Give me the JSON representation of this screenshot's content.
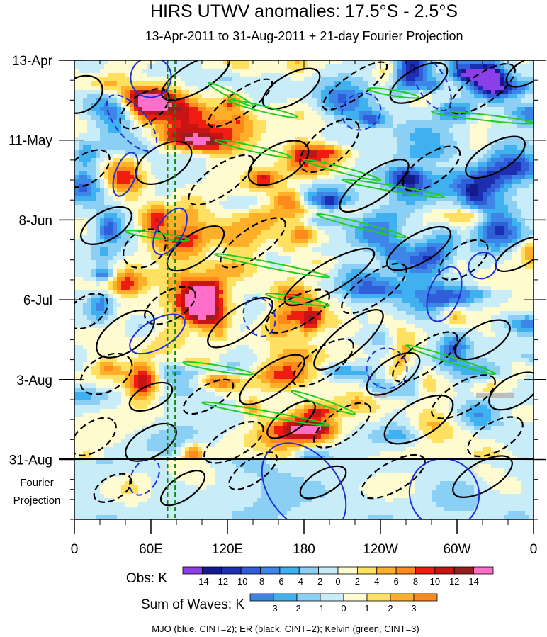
{
  "chart_data": {
    "type": "heatmap",
    "title": "HIRS UTWV anomalies: 17.5°S - 2.5°S",
    "subtitle": "13-Apr-2011 to 31-Aug-2011 + 21-day Fourier Projection",
    "x_axis": {
      "tick_labels": [
        "0",
        "60E",
        "120E",
        "180",
        "120W",
        "60W",
        "0"
      ],
      "tick_values_deg_east": [
        0,
        60,
        120,
        180,
        240,
        300,
        360
      ],
      "range": [
        0,
        360
      ]
    },
    "y_axis": {
      "tick_labels": [
        "13-Apr",
        "11-May",
        "8-Jun",
        "6-Jul",
        "3-Aug",
        "31-Aug"
      ],
      "tick_day_offsets": [
        0,
        28,
        56,
        84,
        112,
        140
      ],
      "range_days": [
        0,
        161
      ],
      "projection_label_line1": "Fourier",
      "projection_label_line2": "Projection",
      "projection_days": 21
    },
    "obs_colorbar": {
      "label": "Obs: K",
      "levels": [
        "-14",
        "-12",
        "-10",
        "-8",
        "-6",
        "-4",
        "-2",
        "0",
        "2",
        "4",
        "6",
        "8",
        "10",
        "12",
        "14"
      ],
      "colors": [
        "#8b3fe8",
        "#141a8c",
        "#1c2fb0",
        "#2f5fd8",
        "#3d86e8",
        "#3fb0f0",
        "#8ccff4",
        "#c8ecf8",
        "#fffbd0",
        "#ffe060",
        "#ffb028",
        "#ff8a1c",
        "#f01c10",
        "#c81414",
        "#962020",
        "#ff6ec8"
      ]
    },
    "waves_colorbar": {
      "label": "Sum of Waves: K",
      "levels": [
        "-3",
        "-2",
        "-1",
        "0",
        "1",
        "2",
        "3"
      ],
      "colors": [
        "#3d86e8",
        "#3fb0f0",
        "#8ccff4",
        "#c8ecf8",
        "#fffbd0",
        "#ffe060",
        "#ffb028",
        "#ff8a1c"
      ]
    },
    "caption": "MJO (blue, CINT=2); ER (black, CINT=2); Kelvin (green, CINT=3)",
    "reference_lines_deg_east": [
      73,
      79
    ],
    "reference_line_color": "#118a11",
    "missing_color": "#bdbdbd",
    "series_colors": {
      "MJO": "#1f2fd6",
      "ER": "#000000",
      "Kelvin": "#22cc22"
    }
  }
}
